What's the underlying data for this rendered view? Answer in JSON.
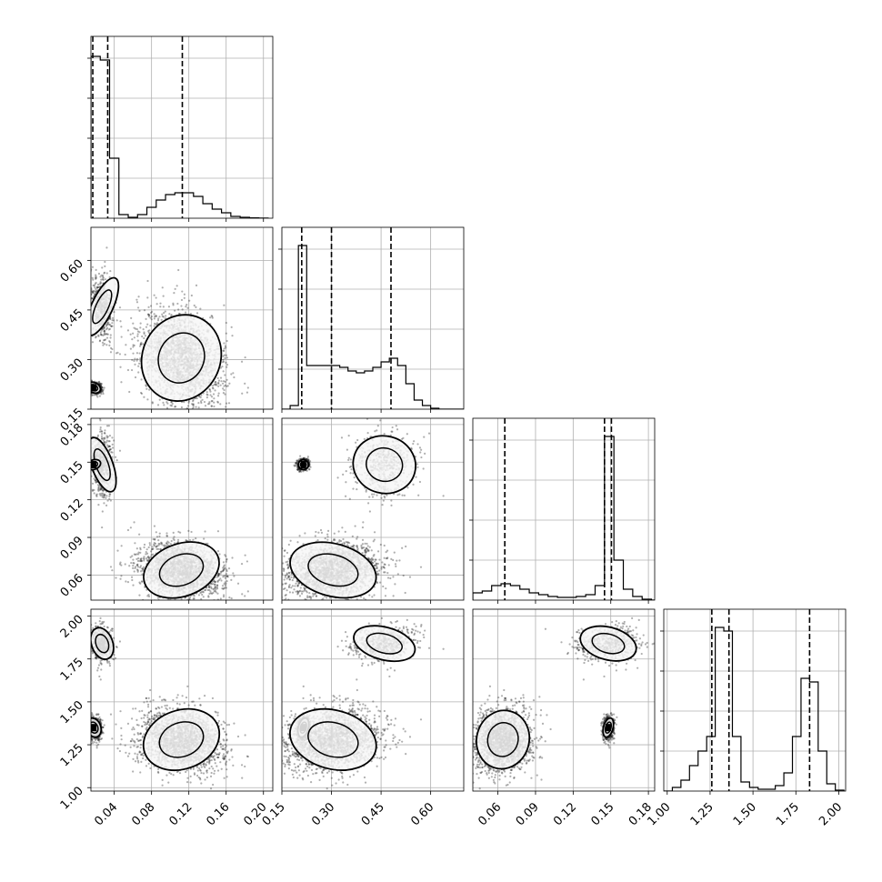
{
  "chart_data": {
    "type": "scatter",
    "variant": "corner-plot",
    "n_params": 4,
    "grid": true,
    "colors": {
      "line": "#000000",
      "points": "#1a1a1a",
      "grid": "#b0b0b0",
      "density_fill": "#f7f7f7"
    },
    "params": [
      {
        "range": [
          0.015,
          0.21
        ],
        "ticks": [
          "0.04",
          "0.08",
          "0.12",
          "0.16",
          "0.20"
        ],
        "tick_values": [
          0.04,
          0.08,
          0.12,
          0.16,
          0.2
        ],
        "quantiles": [
          0.017,
          0.033,
          0.113
        ],
        "hist": [
          [
            0.015,
            0.89
          ],
          [
            0.025,
            0.87
          ],
          [
            0.035,
            0.33
          ],
          [
            0.045,
            0.02
          ],
          [
            0.055,
            0.005
          ],
          [
            0.065,
            0.02
          ],
          [
            0.075,
            0.06
          ],
          [
            0.085,
            0.1
          ],
          [
            0.095,
            0.13
          ],
          [
            0.105,
            0.14
          ],
          [
            0.115,
            0.14
          ],
          [
            0.125,
            0.12
          ],
          [
            0.135,
            0.08
          ],
          [
            0.145,
            0.05
          ],
          [
            0.155,
            0.03
          ],
          [
            0.165,
            0.01
          ],
          [
            0.175,
            0.005
          ],
          [
            0.185,
            0.002
          ],
          [
            0.195,
            0.001
          ]
        ]
      },
      {
        "range": [
          0.15,
          0.7
        ],
        "ticks": [
          "0.15",
          "0.30",
          "0.45",
          "0.60"
        ],
        "tick_values": [
          0.15,
          0.3,
          0.45,
          0.6
        ],
        "quantiles": [
          0.21,
          0.3,
          0.48
        ],
        "hist": [
          [
            0.15,
            0.0
          ],
          [
            0.175,
            0.02
          ],
          [
            0.2,
            0.9
          ],
          [
            0.225,
            0.24
          ],
          [
            0.25,
            0.24
          ],
          [
            0.275,
            0.24
          ],
          [
            0.3,
            0.24
          ],
          [
            0.325,
            0.23
          ],
          [
            0.35,
            0.21
          ],
          [
            0.375,
            0.2
          ],
          [
            0.4,
            0.21
          ],
          [
            0.425,
            0.23
          ],
          [
            0.45,
            0.26
          ],
          [
            0.475,
            0.28
          ],
          [
            0.5,
            0.24
          ],
          [
            0.525,
            0.14
          ],
          [
            0.55,
            0.05
          ],
          [
            0.575,
            0.02
          ],
          [
            0.6,
            0.005
          ],
          [
            0.625,
            0.0
          ],
          [
            0.65,
            0.0
          ],
          [
            0.675,
            0.0
          ]
        ]
      },
      {
        "range": [
          0.04,
          0.185
        ],
        "ticks": [
          "0.06",
          "0.09",
          "0.12",
          "0.15",
          "0.18"
        ],
        "tick_values": [
          0.06,
          0.09,
          0.12,
          0.15,
          0.18
        ],
        "quantiles": [
          0.0655,
          0.145,
          0.1505
        ],
        "hist": [
          [
            0.04,
            0.04
          ],
          [
            0.0475,
            0.05
          ],
          [
            0.055,
            0.08
          ],
          [
            0.0625,
            0.09
          ],
          [
            0.07,
            0.08
          ],
          [
            0.0775,
            0.06
          ],
          [
            0.085,
            0.04
          ],
          [
            0.0925,
            0.03
          ],
          [
            0.1,
            0.02
          ],
          [
            0.1075,
            0.015
          ],
          [
            0.115,
            0.015
          ],
          [
            0.1225,
            0.02
          ],
          [
            0.13,
            0.03
          ],
          [
            0.1375,
            0.08
          ],
          [
            0.145,
            0.9
          ],
          [
            0.1525,
            0.22
          ],
          [
            0.16,
            0.06
          ],
          [
            0.1675,
            0.02
          ],
          [
            0.175,
            0.005
          ],
          [
            0.1825,
            0.0
          ]
        ]
      },
      {
        "range": [
          0.98,
          2.04
        ],
        "ticks": [
          "1.00",
          "1.25",
          "1.50",
          "1.75",
          "2.00"
        ],
        "tick_values": [
          1.0,
          1.25,
          1.5,
          1.75,
          2.0
        ],
        "quantiles": [
          1.26,
          1.36,
          1.83
        ],
        "hist": [
          [
            0.98,
            0.0
          ],
          [
            1.03,
            0.02
          ],
          [
            1.08,
            0.06
          ],
          [
            1.13,
            0.14
          ],
          [
            1.18,
            0.22
          ],
          [
            1.23,
            0.3
          ],
          [
            1.28,
            0.9
          ],
          [
            1.33,
            0.88
          ],
          [
            1.38,
            0.3
          ],
          [
            1.43,
            0.05
          ],
          [
            1.48,
            0.02
          ],
          [
            1.53,
            0.01
          ],
          [
            1.58,
            0.01
          ],
          [
            1.63,
            0.03
          ],
          [
            1.68,
            0.1
          ],
          [
            1.73,
            0.3
          ],
          [
            1.78,
            0.62
          ],
          [
            1.83,
            0.6
          ],
          [
            1.88,
            0.22
          ],
          [
            1.93,
            0.04
          ],
          [
            1.98,
            0.005
          ]
        ]
      }
    ],
    "clusters": [
      {
        "means": [
          0.027,
          0.46,
          0.148,
          1.84
        ],
        "sds": [
          0.006,
          0.05,
          0.012,
          0.05
        ],
        "weight": 0.17
      },
      {
        "means": [
          0.018,
          0.215,
          0.148,
          1.35
        ],
        "sds": [
          0.004,
          0.008,
          0.002,
          0.03
        ],
        "weight": 0.25
      },
      {
        "means": [
          0.112,
          0.305,
          0.064,
          1.28
        ],
        "sds": [
          0.022,
          0.07,
          0.011,
          0.09
        ],
        "weight": 0.58
      }
    ]
  }
}
